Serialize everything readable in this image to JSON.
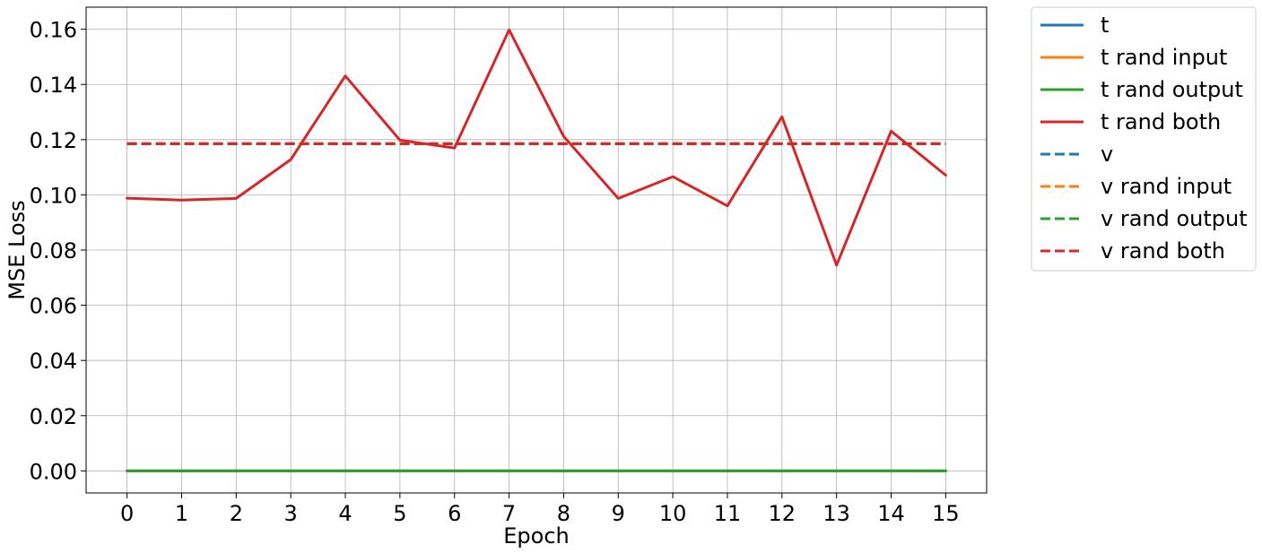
{
  "chart_data": {
    "type": "line",
    "title": "",
    "xlabel": "Epoch",
    "ylabel": "MSE Loss",
    "x": [
      0,
      1,
      2,
      3,
      4,
      5,
      6,
      7,
      8,
      9,
      10,
      11,
      12,
      13,
      14,
      15
    ],
    "xticks": [
      "0",
      "1",
      "2",
      "3",
      "4",
      "5",
      "6",
      "7",
      "8",
      "9",
      "10",
      "11",
      "12",
      "13",
      "14",
      "15"
    ],
    "yticks": [
      "0.00",
      "0.02",
      "0.04",
      "0.06",
      "0.08",
      "0.10",
      "0.12",
      "0.14",
      "0.16"
    ],
    "ytick_values": [
      0.0,
      0.02,
      0.04,
      0.06,
      0.08,
      0.1,
      0.12,
      0.14,
      0.16
    ],
    "xlim": [
      -0.75,
      15.75
    ],
    "ylim": [
      -0.008,
      0.168
    ],
    "grid": true,
    "legend_position": "outside-top-right",
    "series": [
      {
        "name": "t",
        "color": "#1f77b4",
        "dash": "solid",
        "values": [
          0,
          0,
          0,
          0,
          0,
          0,
          0,
          0,
          0,
          0,
          0,
          0,
          0,
          0,
          0,
          0
        ]
      },
      {
        "name": "t rand input",
        "color": "#ff7f0e",
        "dash": "solid",
        "values": [
          0,
          0,
          0,
          0,
          0,
          0,
          0,
          0,
          0,
          0,
          0,
          0,
          0,
          0,
          0,
          0
        ]
      },
      {
        "name": "t rand output",
        "color": "#2ca02c",
        "dash": "solid",
        "values": [
          0,
          0,
          0,
          0,
          0,
          0,
          0,
          0,
          0,
          0,
          0,
          0,
          0,
          0,
          0,
          0
        ]
      },
      {
        "name": "t rand both",
        "color": "#d62728",
        "dash": "solid",
        "values": [
          0.0988,
          0.0981,
          0.0987,
          0.1128,
          0.1431,
          0.1198,
          0.117,
          0.1598,
          0.1212,
          0.0987,
          0.1066,
          0.096,
          0.1283,
          0.0745,
          0.1231,
          0.1071
        ]
      },
      {
        "name": "v",
        "color": "#1f77b4",
        "dash": "dashed",
        "values": [
          0.1185,
          0.1185,
          0.1185,
          0.1185,
          0.1185,
          0.1185,
          0.1185,
          0.1185,
          0.1185,
          0.1185,
          0.1185,
          0.1185,
          0.1185,
          0.1185,
          0.1185,
          0.1185
        ]
      },
      {
        "name": "v rand input",
        "color": "#ff7f0e",
        "dash": "dashed",
        "values": [
          0.1185,
          0.1185,
          0.1185,
          0.1185,
          0.1185,
          0.1185,
          0.1185,
          0.1185,
          0.1185,
          0.1185,
          0.1185,
          0.1185,
          0.1185,
          0.1185,
          0.1185,
          0.1185
        ]
      },
      {
        "name": "v rand output",
        "color": "#2ca02c",
        "dash": "dashed",
        "values": [
          0.1185,
          0.1185,
          0.1185,
          0.1185,
          0.1185,
          0.1185,
          0.1185,
          0.1185,
          0.1185,
          0.1185,
          0.1185,
          0.1185,
          0.1185,
          0.1185,
          0.1185,
          0.1185
        ]
      },
      {
        "name": "v rand both",
        "color": "#d62728",
        "dash": "dashed",
        "values": [
          0.1185,
          0.1185,
          0.1185,
          0.1185,
          0.1185,
          0.1185,
          0.1185,
          0.1185,
          0.1185,
          0.1185,
          0.1185,
          0.1185,
          0.1185,
          0.1185,
          0.1185,
          0.1185
        ]
      }
    ]
  }
}
